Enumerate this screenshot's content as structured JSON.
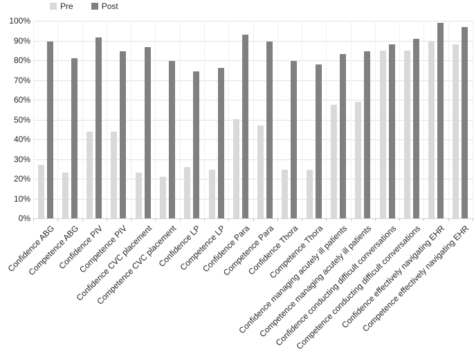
{
  "legend": {
    "items": [
      {
        "label": "Pre",
        "color": "#d9d9d9"
      },
      {
        "label": "Post",
        "color": "#808080"
      }
    ]
  },
  "y_axis": {
    "tick_labels": [
      "100%",
      "90%",
      "80%",
      "70%",
      "60%",
      "50%",
      "40%",
      "30%",
      "20%",
      "10%",
      "0%"
    ]
  },
  "chart_data": {
    "type": "bar",
    "title": "",
    "xlabel": "",
    "ylabel": "",
    "ylim": [
      0,
      100
    ],
    "ytick_step": 10,
    "ytick_format": "percent",
    "grid": true,
    "legend_position": "top",
    "categories": [
      "Confidence ABG",
      "Competence ABG",
      "Confidence PIV",
      "Competence PIV",
      "Confidence CVC placement",
      "Competence CVC placement",
      "Confidence LP",
      "Competence LP",
      "Confidence Para",
      "Competence Para",
      "Confidence Thora",
      "Competence Thora",
      "Confidence managing acutely ill patients",
      "Competence managing acutely ill patients",
      "Confidence conducting difficult conversations",
      "Competence conducting difficult conversations",
      "Confidence effectively navigating EHR",
      "Competence effectively navigating EHR"
    ],
    "series": [
      {
        "name": "Pre",
        "color": "#d9d9d9",
        "values": [
          27,
          23,
          44,
          44,
          23,
          21,
          26,
          24.5,
          50,
          47,
          24.5,
          24.5,
          57.5,
          59,
          85,
          85,
          89.5,
          88
        ]
      },
      {
        "name": "Post",
        "color": "#808080",
        "values": [
          89.5,
          81,
          91.5,
          84.5,
          86.5,
          79.5,
          74.5,
          76,
          93,
          89.5,
          79.5,
          78,
          83,
          84.5,
          88,
          91,
          99,
          97
        ]
      }
    ]
  }
}
